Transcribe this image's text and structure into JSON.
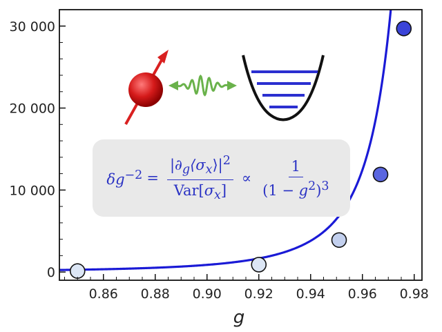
{
  "chart_data": {
    "type": "scatter",
    "xlabel": "g",
    "ylabel": "",
    "title": "",
    "xlim": [
      0.843,
      0.983
    ],
    "ylim": [
      -1000,
      32000
    ],
    "x_ticks": [
      0.86,
      0.88,
      0.9,
      0.92,
      0.94,
      0.96,
      0.98
    ],
    "x_tick_labels": [
      "0.86",
      "0.88",
      "0.90",
      "0.92",
      "0.94",
      "0.96",
      "0.98"
    ],
    "y_ticks": [
      0,
      10000,
      20000,
      30000
    ],
    "y_tick_labels": [
      "0",
      "10 000",
      "20 000",
      "30 000"
    ],
    "grid": false,
    "series": [
      {
        "kind": "points",
        "x": [
          0.85,
          0.92,
          0.951,
          0.967,
          0.976
        ],
        "y": [
          120,
          900,
          3900,
          11900,
          29700
        ],
        "colors": [
          "#dce6f5",
          "#dce6f5",
          "#c3d0ee",
          "#5a66e0",
          "#3b44d8"
        ]
      },
      {
        "kind": "fit-curve",
        "formula": "C / (1 - g^2)^3",
        "coefficient": 6.0,
        "color": "#1a1ad6"
      }
    ],
    "annotation": {
      "lhs": "δg",
      "lhs_exp": "−2",
      "equals": "=",
      "num": "|∂",
      "num_sub": "g",
      "num_mid": "⟨σ",
      "num_sub2": "x",
      "num_end": "⟩|",
      "num_exp": "2",
      "den": "Var[σ",
      "den_sub": "x",
      "den_end": "]",
      "prop": "∝",
      "rhs_num": "1",
      "rhs_den": "(1 − g",
      "rhs_den_exp": "2",
      "rhs_den_end": ")",
      "rhs_den_exp2": "3"
    },
    "illustration": {
      "qubit": "red-sphere-spin-icon",
      "photon": "green-wave-packet-icon",
      "oscillator": "harmonic-potential-well-icon"
    }
  }
}
